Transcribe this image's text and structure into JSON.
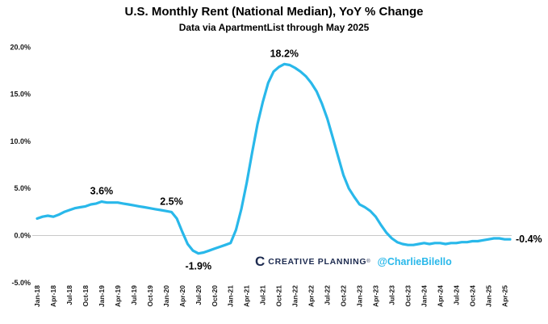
{
  "chart_data": {
    "type": "line",
    "title": "U.S. Monthly Rent (National Median), YoY % Change",
    "subtitle": "Data via ApartmentList through May 2025",
    "line_color": "#29b8ea",
    "grid": "zero-line-only",
    "legend": "none",
    "ylim": [
      -5,
      20
    ],
    "yticks": [
      {
        "v": 20,
        "label": "20.0%"
      },
      {
        "v": 15,
        "label": "15.0%"
      },
      {
        "v": 10,
        "label": "10.0%"
      },
      {
        "v": 5,
        "label": "5.0%"
      },
      {
        "v": 0,
        "label": "0.0%"
      },
      {
        "v": -5,
        "label": "-5.0%"
      }
    ],
    "xtick_every": 3,
    "x": [
      "Jan-18",
      "Feb-18",
      "Mar-18",
      "Apr-18",
      "May-18",
      "Jun-18",
      "Jul-18",
      "Aug-18",
      "Sep-18",
      "Oct-18",
      "Nov-18",
      "Dec-18",
      "Jan-19",
      "Feb-19",
      "Mar-19",
      "Apr-19",
      "May-19",
      "Jun-19",
      "Jul-19",
      "Aug-19",
      "Sep-19",
      "Oct-19",
      "Nov-19",
      "Dec-19",
      "Jan-20",
      "Feb-20",
      "Mar-20",
      "Apr-20",
      "May-20",
      "Jun-20",
      "Jul-20",
      "Aug-20",
      "Sep-20",
      "Oct-20",
      "Nov-20",
      "Dec-20",
      "Jan-21",
      "Feb-21",
      "Mar-21",
      "Apr-21",
      "May-21",
      "Jun-21",
      "Jul-21",
      "Aug-21",
      "Sep-21",
      "Oct-21",
      "Nov-21",
      "Dec-21",
      "Jan-22",
      "Feb-22",
      "Mar-22",
      "Apr-22",
      "May-22",
      "Jun-22",
      "Jul-22",
      "Aug-22",
      "Sep-22",
      "Oct-22",
      "Nov-22",
      "Dec-22",
      "Jan-23",
      "Feb-23",
      "Mar-23",
      "Apr-23",
      "May-23",
      "Jun-23",
      "Jul-23",
      "Aug-23",
      "Sep-23",
      "Oct-23",
      "Nov-23",
      "Dec-23",
      "Jan-24",
      "Feb-24",
      "Mar-24",
      "Apr-24",
      "May-24",
      "Jun-24",
      "Jul-24",
      "Aug-24",
      "Sep-24",
      "Oct-24",
      "Nov-24",
      "Dec-24",
      "Jan-25",
      "Feb-25",
      "Mar-25",
      "Apr-25",
      "May-25"
    ],
    "values": [
      1.8,
      2.0,
      2.1,
      2.0,
      2.2,
      2.5,
      2.7,
      2.9,
      3.0,
      3.1,
      3.3,
      3.4,
      3.6,
      3.5,
      3.5,
      3.5,
      3.4,
      3.3,
      3.2,
      3.1,
      3.0,
      2.9,
      2.8,
      2.7,
      2.6,
      2.5,
      1.8,
      0.4,
      -0.9,
      -1.6,
      -1.9,
      -1.8,
      -1.6,
      -1.4,
      -1.2,
      -1.0,
      -0.8,
      0.6,
      2.8,
      5.6,
      8.8,
      11.8,
      14.2,
      16.2,
      17.4,
      17.9,
      18.2,
      18.1,
      17.8,
      17.4,
      16.9,
      16.2,
      15.3,
      14.0,
      12.4,
      10.4,
      8.4,
      6.4,
      5.0,
      4.1,
      3.3,
      3.0,
      2.6,
      2.0,
      1.1,
      0.3,
      -0.3,
      -0.7,
      -0.9,
      -1.0,
      -1.0,
      -0.9,
      -0.8,
      -0.9,
      -0.8,
      -0.8,
      -0.9,
      -0.8,
      -0.8,
      -0.7,
      -0.7,
      -0.6,
      -0.6,
      -0.5,
      -0.4,
      -0.3,
      -0.3,
      -0.4,
      -0.4
    ],
    "annotations": [
      {
        "text": "3.6%",
        "month": "Jan-19",
        "placement": "above"
      },
      {
        "text": "2.5%",
        "month": "Feb-20",
        "placement": "above"
      },
      {
        "text": "-1.9%",
        "month": "Jul-20",
        "placement": "below"
      },
      {
        "text": "18.2%",
        "month": "Nov-21",
        "placement": "above"
      },
      {
        "text": "-0.4%",
        "month": "May-25",
        "placement": "right"
      }
    ]
  },
  "watermark": {
    "logo_letter": "C",
    "brand": "CREATIVE PLANNING",
    "registered": "®",
    "handle": "@CharlieBilello",
    "brand_color": "#1d2b50",
    "handle_color": "#29b8ea"
  }
}
